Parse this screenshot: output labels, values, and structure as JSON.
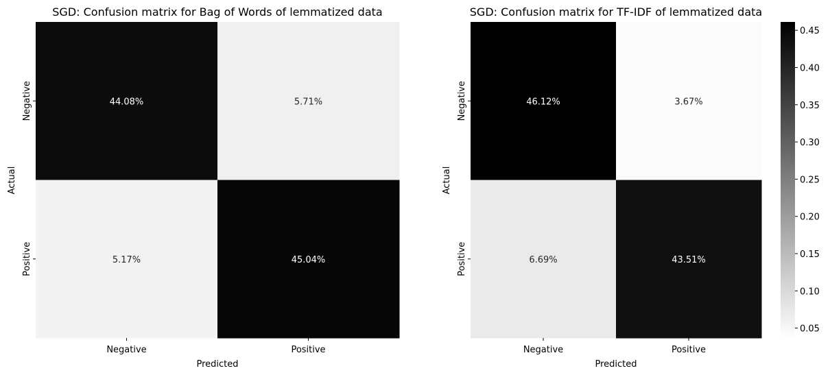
{
  "chart_data": [
    {
      "type": "heatmap",
      "title": "SGD: Confusion matrix for Bag of Words of lemmatized data",
      "xlabel": "Predicted",
      "ylabel": "Actual",
      "x_categories": [
        "Negative",
        "Positive"
      ],
      "y_categories": [
        "Negative",
        "Positive"
      ],
      "values": [
        [
          0.4408,
          0.0571
        ],
        [
          0.0517,
          0.4504
        ]
      ],
      "cell_labels": [
        [
          "44.08%",
          "5.71%"
        ],
        [
          "5.17%",
          "45.04%"
        ]
      ],
      "colormap": "Greys"
    },
    {
      "type": "heatmap",
      "title": "SGD: Confusion matrix for TF-IDF of lemmatized data",
      "xlabel": "Predicted",
      "ylabel": "Actual",
      "x_categories": [
        "Negative",
        "Positive"
      ],
      "y_categories": [
        "Negative",
        "Positive"
      ],
      "values": [
        [
          0.4612,
          0.0367
        ],
        [
          0.0669,
          0.4351
        ]
      ],
      "cell_labels": [
        [
          "46.12%",
          "3.67%"
        ],
        [
          "6.69%",
          "43.51%"
        ]
      ],
      "colormap": "Greys",
      "colorbar": {
        "range": [
          0.0367,
          0.4612
        ],
        "ticks": [
          0.05,
          0.1,
          0.15,
          0.2,
          0.25,
          0.3,
          0.35,
          0.4,
          0.45
        ],
        "tick_labels": [
          "0.05",
          "0.10",
          "0.15",
          "0.20",
          "0.25",
          "0.30",
          "0.35",
          "0.40",
          "0.45"
        ]
      }
    }
  ]
}
